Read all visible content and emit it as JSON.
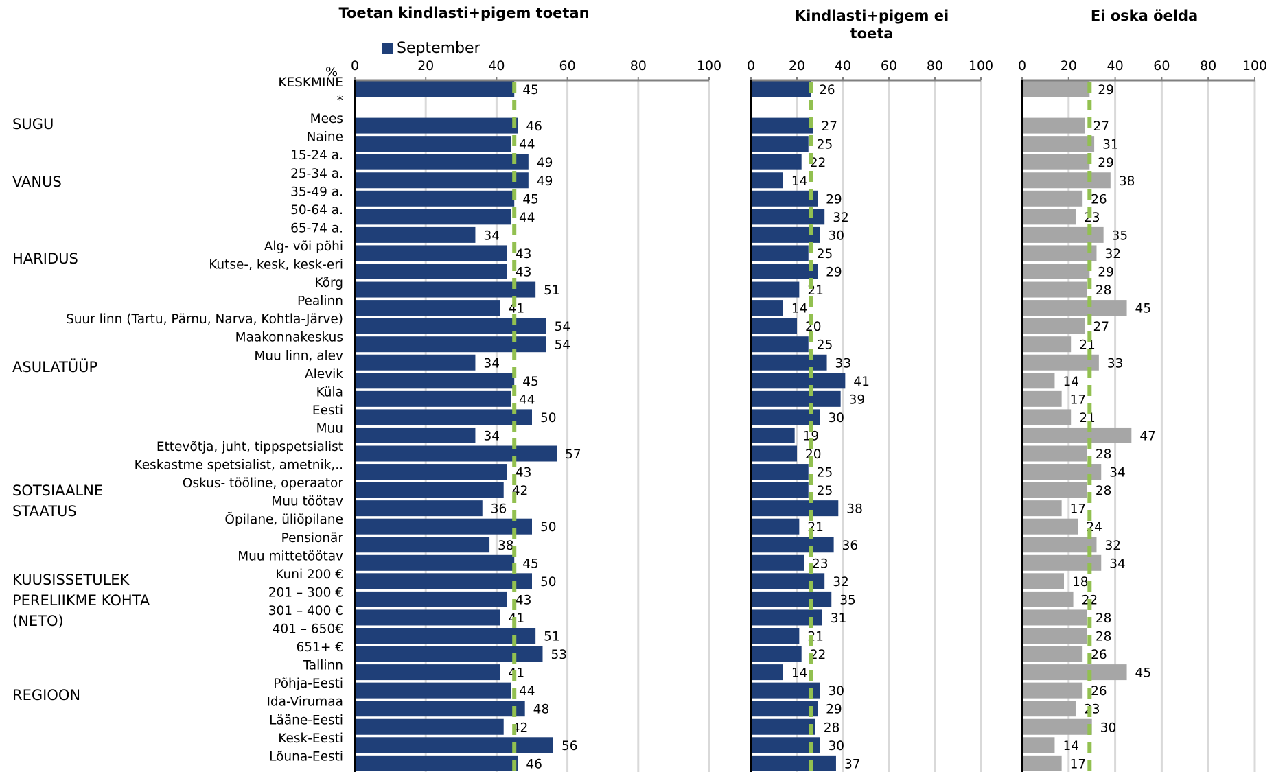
{
  "colors": {
    "blue": "#1f3f78",
    "gray": "#a6a6a6",
    "avg_marker": "#92c050",
    "grid": "#d9d9d9",
    "axis": "#808080"
  },
  "chart_data": {
    "type": "bar",
    "orientation": "horizontal",
    "percent_label": "%",
    "legend": {
      "label": "September",
      "placement": "top"
    },
    "xlim": [
      0,
      100
    ],
    "ticks": [
      "0",
      "20",
      "40",
      "60",
      "80",
      "100"
    ],
    "categories": [
      "KESKMINE",
      "*",
      "Mees",
      "Naine",
      "15-24 a.",
      "25-34 a.",
      "35-49 a.",
      "50-64 a.",
      "65-74 a.",
      "Alg- või põhi",
      "Kutse-, kesk, kesk-eri",
      "Kõrg",
      "Pealinn",
      "Suur linn (Tartu, Pärnu, Narva, Kohtla-Järve)",
      "Maakonnakeskus",
      "Muu linn, alev",
      "Alevik",
      "Küla",
      "Eesti",
      "Muu",
      "Ettevõtja, juht, tippspetsialist",
      "Keskastme spetsialist, ametnik,..",
      "Oskus- tööline, operaator",
      "Muu töötav",
      "Õpilane, üliõpilane",
      "Pensionär",
      "Muu mittetöötav",
      "Kuni 200 €",
      "201 – 300 €",
      "301 – 400 €",
      "401 – 650€",
      "651+ €",
      "Tallinn",
      "Põhja-Eesti",
      "Ida-Virumaa",
      "Lääne-Eesti",
      "Kesk-Eesti",
      "Lõuna-Eesti"
    ],
    "groups": [
      {
        "label": "SUGU",
        "lines": [
          "SUGU"
        ]
      },
      {
        "label": "VANUS",
        "lines": [
          "VANUS"
        ]
      },
      {
        "label": "HARIDUS",
        "lines": [
          "HARIDUS"
        ]
      },
      {
        "label": "ASULATÜÜP",
        "lines": [
          "ASULATÜÜP"
        ]
      },
      {
        "label": "SOTSIAALNE STAATUS",
        "lines": [
          "SOTSIAALNE",
          "STAATUS"
        ]
      },
      {
        "label": "KUUSISSETULEK PERELIIKME KOHTA (NETO)",
        "lines": [
          "KUUSISSETULEK",
          "PERELIIKME KOHTA",
          "(NETO)"
        ]
      },
      {
        "label": "REGIOON",
        "lines": [
          "REGIOON"
        ]
      }
    ],
    "panels": [
      {
        "title": "Toetan kindlasti+pigem toetan",
        "title_lines": [
          "Toetan kindlasti+pigem toetan"
        ],
        "color": "blue",
        "average": 45,
        "values": [
          45,
          null,
          46,
          44,
          49,
          49,
          45,
          44,
          34,
          43,
          43,
          51,
          41,
          54,
          54,
          34,
          45,
          44,
          50,
          34,
          57,
          43,
          42,
          36,
          50,
          38,
          45,
          50,
          43,
          41,
          51,
          53,
          41,
          44,
          48,
          42,
          56,
          46
        ]
      },
      {
        "title": "Kindlasti+pigem ei toeta",
        "title_lines": [
          "Kindlasti+pigem ei",
          "toeta"
        ],
        "color": "blue",
        "average": 26,
        "values": [
          26,
          null,
          27,
          25,
          22,
          14,
          29,
          32,
          30,
          25,
          29,
          21,
          14,
          20,
          25,
          33,
          41,
          39,
          30,
          19,
          20,
          25,
          25,
          38,
          21,
          36,
          23,
          32,
          35,
          31,
          21,
          22,
          14,
          30,
          29,
          28,
          30,
          37
        ]
      },
      {
        "title": "Ei oska öelda",
        "title_lines": [
          "Ei oska öelda"
        ],
        "color": "gray",
        "average": 29,
        "values": [
          29,
          null,
          27,
          31,
          29,
          38,
          26,
          23,
          35,
          32,
          29,
          28,
          45,
          27,
          21,
          33,
          14,
          17,
          21,
          47,
          28,
          34,
          28,
          17,
          24,
          32,
          34,
          18,
          22,
          28,
          28,
          26,
          45,
          26,
          23,
          30,
          14,
          17
        ]
      }
    ]
  }
}
